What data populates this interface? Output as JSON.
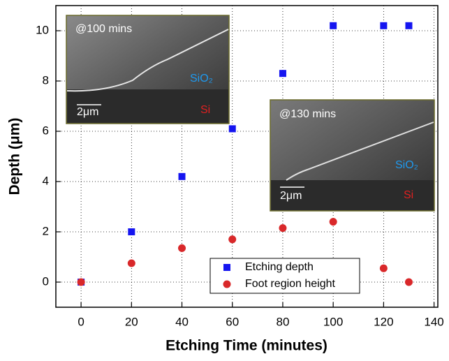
{
  "chart_data": {
    "type": "scatter",
    "x_label": "Etching Time (minutes)",
    "y_label": "Depth (μm)",
    "series": [
      {
        "name": "Etching depth",
        "color": "#1515f0",
        "marker": "square",
        "x": [
          0,
          20,
          40,
          60,
          80,
          100,
          120,
          130
        ],
        "values": [
          0,
          2.0,
          4.2,
          6.1,
          8.3,
          10.2,
          10.2,
          10.2
        ]
      },
      {
        "name": "Foot region height",
        "color": "#d9282a",
        "marker": "circle",
        "x": [
          0,
          20,
          40,
          60,
          80,
          100,
          120,
          130
        ],
        "values": [
          0,
          0.75,
          1.35,
          1.7,
          2.15,
          2.4,
          0.55,
          0
        ]
      }
    ],
    "xlim": [
      -10,
      141.5
    ],
    "ylim": [
      -1,
      11
    ],
    "xticks": [
      0,
      20,
      40,
      60,
      80,
      100,
      120,
      140
    ],
    "yticks": [
      0,
      2,
      4,
      6,
      8,
      10
    ],
    "grid": true,
    "legend": "lower center",
    "annotations": [
      "@100 mins",
      "SiO₂",
      "2μm",
      "Si",
      "@130 mins",
      "SiO₂",
      "2μm",
      "Si"
    ]
  }
}
